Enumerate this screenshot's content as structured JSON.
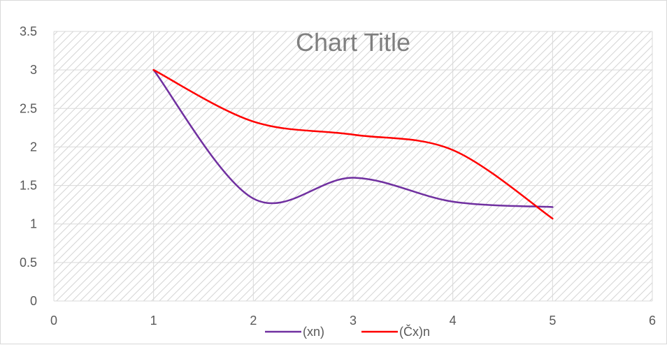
{
  "chart_data": {
    "type": "line",
    "title": "Chart Title",
    "xlabel": "",
    "ylabel": "",
    "xlim": [
      0,
      6
    ],
    "ylim": [
      0,
      3.5
    ],
    "x_ticks": [
      0,
      1,
      2,
      3,
      4,
      5,
      6
    ],
    "y_ticks": [
      0,
      0.5,
      1,
      1.5,
      2,
      2.5,
      3,
      3.5
    ],
    "grid": true,
    "smooth": true,
    "legend_position": "bottom",
    "background": "diagonal-hatch",
    "series": [
      {
        "name": "(xn)",
        "color": "#7030a0",
        "x": [
          1,
          2,
          3,
          4,
          5
        ],
        "y": [
          3,
          1.33,
          1.6,
          1.29,
          1.22
        ]
      },
      {
        "name": "(Čx)n",
        "color": "#ff0000",
        "x": [
          1,
          2,
          3,
          4,
          5
        ],
        "y": [
          3,
          2.33,
          2.16,
          1.96,
          1.07
        ]
      }
    ]
  }
}
